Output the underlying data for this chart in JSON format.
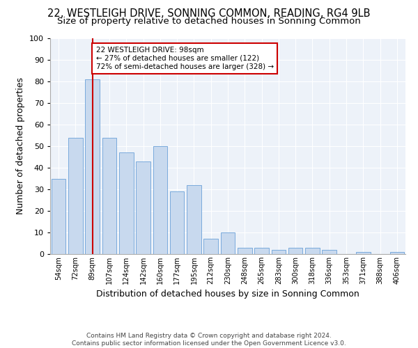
{
  "title": "22, WESTLEIGH DRIVE, SONNING COMMON, READING, RG4 9LB",
  "subtitle": "Size of property relative to detached houses in Sonning Common",
  "xlabel": "Distribution of detached houses by size in Sonning Common",
  "ylabel": "Number of detached properties",
  "bar_color": "#c8d9ee",
  "bar_edge_color": "#7aaadc",
  "bg_color": "#edf2f9",
  "grid_color": "#ffffff",
  "categories": [
    "54sqm",
    "72sqm",
    "89sqm",
    "107sqm",
    "124sqm",
    "142sqm",
    "160sqm",
    "177sqm",
    "195sqm",
    "212sqm",
    "230sqm",
    "248sqm",
    "265sqm",
    "283sqm",
    "300sqm",
    "318sqm",
    "336sqm",
    "353sqm",
    "371sqm",
    "388sqm",
    "406sqm"
  ],
  "values": [
    35,
    54,
    81,
    54,
    47,
    43,
    50,
    29,
    32,
    7,
    10,
    3,
    3,
    2,
    3,
    3,
    2,
    0,
    1,
    0,
    1
  ],
  "ylim": [
    0,
    100
  ],
  "yticks": [
    0,
    10,
    20,
    30,
    40,
    50,
    60,
    70,
    80,
    90,
    100
  ],
  "vline_x_index": 2,
  "vline_color": "#cc0000",
  "annotation_line1": "22 WESTLEIGH DRIVE: 98sqm",
  "annotation_line2": "← 27% of detached houses are smaller (122)",
  "annotation_line3": "72% of semi-detached houses are larger (328) →",
  "annotation_box_color": "#cc0000",
  "footer": "Contains HM Land Registry data © Crown copyright and database right 2024.\nContains public sector information licensed under the Open Government Licence v3.0.",
  "title_fontsize": 10.5,
  "subtitle_fontsize": 9.5,
  "ylabel_fontsize": 9,
  "xlabel_fontsize": 9
}
